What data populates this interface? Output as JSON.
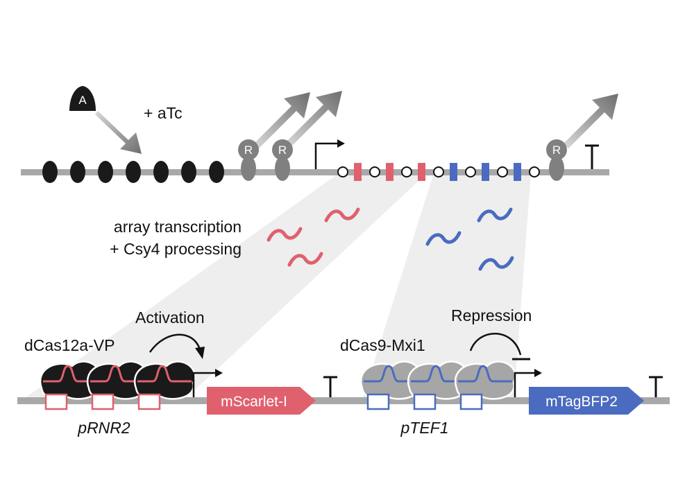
{
  "aTc": {
    "glyph": "A",
    "label": "+ aTc"
  },
  "repressor": {
    "glyph": "R"
  },
  "processing": {
    "line1": "array transcription",
    "line2": "+ Csy4 processing"
  },
  "activation": {
    "label": "Activation",
    "protein": "dCas12a-VP",
    "promoter": "pRNR2",
    "reporter": "mScarlet-I",
    "color": "#e0606e"
  },
  "repression": {
    "label": "Repression",
    "protein": "dCas9-Mxi1",
    "promoter": "pTEF1",
    "reporter": "mTagBFP2",
    "color": "#4a6bbf"
  },
  "colors": {
    "dna": "#a8a8a8",
    "operator": "#1a1a1a",
    "repressor": "#808080",
    "cone": "#ececec"
  }
}
